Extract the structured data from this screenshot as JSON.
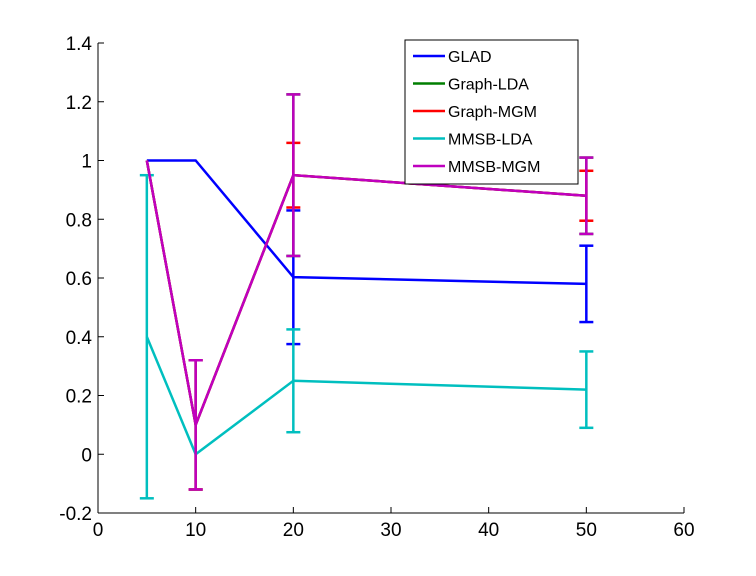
{
  "chart_data": {
    "type": "line",
    "title": "",
    "xlabel": "",
    "ylabel": "",
    "xlim": [
      0,
      60
    ],
    "ylim": [
      -0.2,
      1.4
    ],
    "xticks": [
      "0",
      "10",
      "20",
      "30",
      "40",
      "50",
      "60"
    ],
    "yticks": [
      "-0.2",
      "0",
      "0.2",
      "0.4",
      "0.6",
      "0.8",
      "1",
      "1.2",
      "1.4"
    ],
    "grid": false,
    "legend_position": "top-right",
    "x": [
      5,
      10,
      20,
      50
    ],
    "series": [
      {
        "name": "GLAD",
        "color": "#0000ff",
        "values": [
          1.0,
          1.0,
          0.603,
          0.58
        ],
        "err_low": [
          1.0,
          1.0,
          0.375,
          0.45
        ],
        "err_high": [
          1.0,
          1.0,
          0.83,
          0.71
        ]
      },
      {
        "name": "Graph-LDA",
        "color": "#007f00",
        "values": [
          1.0,
          0.1,
          0.95,
          0.88
        ],
        "err_low": [
          1.0,
          -0.12,
          0.675,
          0.75
        ],
        "err_high": [
          1.0,
          0.32,
          1.225,
          1.01
        ]
      },
      {
        "name": "Graph-MGM",
        "color": "#ff0000",
        "values": [
          1.0,
          0.1,
          0.95,
          0.88
        ],
        "err_low": [
          1.0,
          -0.12,
          0.84,
          0.795
        ],
        "err_high": [
          1.0,
          0.32,
          1.06,
          0.965
        ]
      },
      {
        "name": "MMSB-LDA",
        "color": "#00bfbf",
        "values": [
          0.4,
          0.0,
          0.25,
          0.22
        ],
        "err_low": [
          -0.15,
          0.0,
          0.075,
          0.09
        ],
        "err_high": [
          0.95,
          0.0,
          0.425,
          0.35
        ]
      },
      {
        "name": "MMSB-MGM",
        "color": "#bf00bf",
        "values": [
          1.0,
          0.1,
          0.95,
          0.88
        ],
        "err_low": [
          1.0,
          -0.12,
          0.675,
          0.75
        ],
        "err_high": [
          1.0,
          0.32,
          1.225,
          1.01
        ]
      }
    ]
  }
}
